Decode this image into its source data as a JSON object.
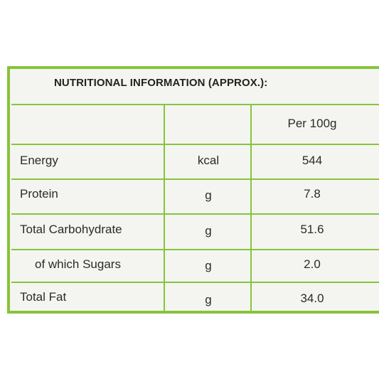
{
  "title": "NUTRITIONAL INFORMATION (APPROX.):",
  "header": {
    "unit": "",
    "value": "Per 100g"
  },
  "rows": [
    {
      "label": "Energy",
      "unit": "kcal",
      "value": "544"
    },
    {
      "label": "Protein",
      "unit": "g",
      "value": "7.8"
    },
    {
      "label": "Total Carbohydrate",
      "unit": "g",
      "value": "51.6"
    },
    {
      "label": "of which Sugars",
      "unit": "g",
      "value": "2.0"
    },
    {
      "label": "Total Fat",
      "unit": "g",
      "value": "34.0"
    }
  ],
  "colors": {
    "border": "#86c43c",
    "panel": "#f4f5f0",
    "text": "#2b2b2b"
  }
}
